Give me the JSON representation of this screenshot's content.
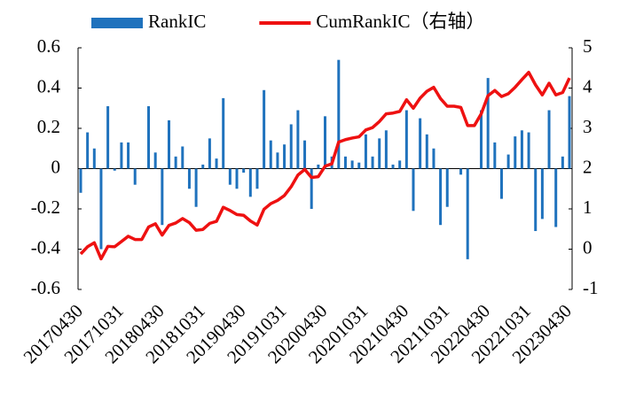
{
  "chart_data": {
    "type": "bar-line",
    "categories": [
      "20170430",
      null,
      null,
      null,
      null,
      null,
      "20171031",
      null,
      null,
      null,
      null,
      null,
      "20180430",
      null,
      null,
      null,
      null,
      null,
      "20181031",
      null,
      null,
      null,
      null,
      null,
      "20190430",
      null,
      null,
      null,
      null,
      null,
      "20191031",
      null,
      null,
      null,
      null,
      null,
      "20200430",
      null,
      null,
      null,
      null,
      null,
      "20201031",
      null,
      null,
      null,
      null,
      null,
      "20210430",
      null,
      null,
      null,
      null,
      null,
      "20211031",
      null,
      null,
      null,
      null,
      null,
      "20220430",
      null,
      null,
      null,
      null,
      null,
      "20221031",
      null,
      null,
      null,
      null,
      null,
      "20230430"
    ],
    "series": [
      {
        "name": "RankIC",
        "type": "bar",
        "color": "#1f72bd",
        "values": [
          -0.12,
          0.18,
          0.1,
          -0.4,
          0.31,
          -0.01,
          0.13,
          0.13,
          -0.08,
          0,
          0.31,
          0.08,
          -0.28,
          0.24,
          0.06,
          0.11,
          -0.1,
          -0.19,
          0.02,
          0.15,
          0.05,
          0.35,
          -0.08,
          -0.1,
          -0.02,
          -0.14,
          -0.1,
          0.39,
          0.14,
          0.08,
          0.12,
          0.22,
          0.29,
          0.14,
          -0.2,
          0.02,
          0.26,
          0.06,
          0.54,
          0.06,
          0.04,
          0.03,
          0.17,
          0.06,
          0.15,
          0.19,
          0.02,
          0.04,
          0.29,
          -0.21,
          0.25,
          0.17,
          0.1,
          -0.28,
          -0.19,
          0,
          -0.03,
          -0.45,
          0,
          0.29,
          0.45,
          0.13,
          -0.15,
          0.07,
          0.16,
          0.19,
          0.18,
          -0.31,
          -0.25,
          0.29,
          -0.29,
          0.06,
          0.36
        ]
      },
      {
        "name": "CumRankIC（右轴）",
        "type": "line",
        "axis": "y2",
        "color": "#ee1111",
        "values": [
          -0.12,
          0.06,
          0.16,
          -0.24,
          0.07,
          0.06,
          0.19,
          0.32,
          0.24,
          0.24,
          0.55,
          0.63,
          0.35,
          0.59,
          0.65,
          0.76,
          0.66,
          0.47,
          0.49,
          0.64,
          0.69,
          1.04,
          0.96,
          0.86,
          0.84,
          0.7,
          0.6,
          0.99,
          1.13,
          1.21,
          1.33,
          1.55,
          1.84,
          1.98,
          1.78,
          1.8,
          2.06,
          2.12,
          2.66,
          2.72,
          2.76,
          2.79,
          2.96,
          3.02,
          3.17,
          3.36,
          3.38,
          3.42,
          3.71,
          3.5,
          3.75,
          3.92,
          4.02,
          3.74,
          3.55,
          3.55,
          3.52,
          3.07,
          3.07,
          3.36,
          3.81,
          3.94,
          3.79,
          3.86,
          4.02,
          4.21,
          4.39,
          4.08,
          3.83,
          4.12,
          3.83,
          3.89,
          4.25
        ]
      }
    ],
    "ylim": [
      -0.6,
      0.6
    ],
    "yticks": [
      -0.6,
      -0.4,
      -0.2,
      0,
      0.2,
      0.4,
      0.6
    ],
    "y2lim": [
      -1,
      5
    ],
    "y2ticks": [
      -1,
      0,
      1,
      2,
      3,
      4,
      5
    ],
    "legend": "top",
    "grid": false
  }
}
